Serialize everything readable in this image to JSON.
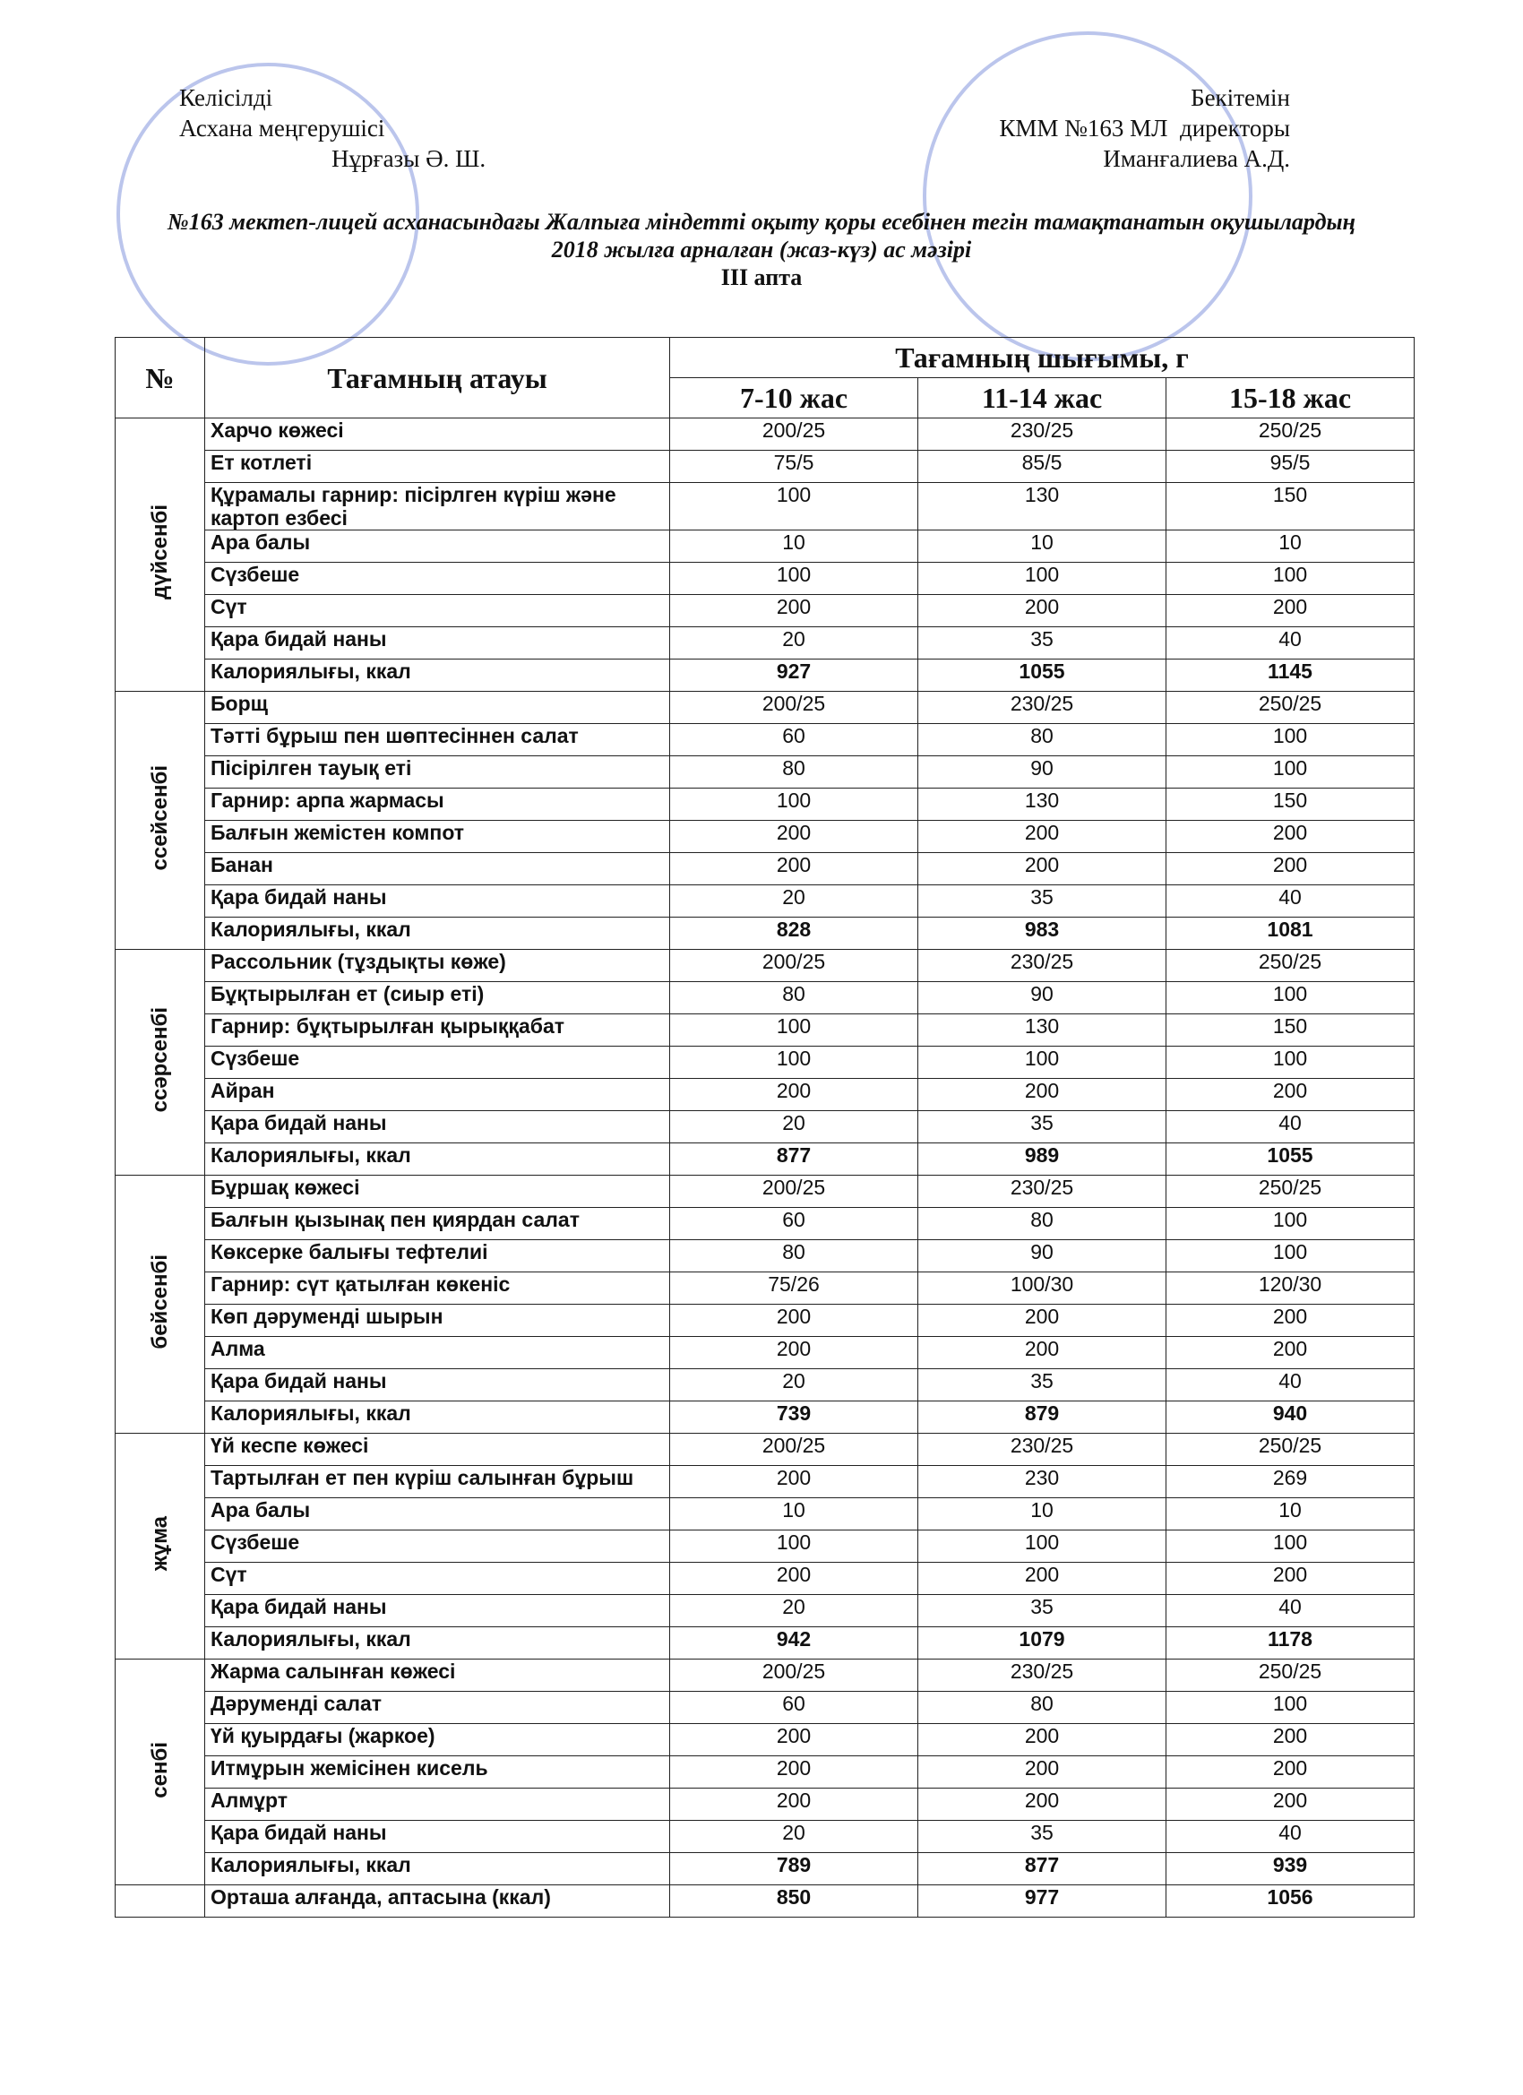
{
  "header": {
    "left": [
      "Келісілді",
      "Асхана меңгерушісі",
      "Нұрғазы Ә. Ш."
    ],
    "right": [
      "Бекітемін",
      "КММ №163 МЛ  директоры",
      "Иманғалиева А.Д."
    ],
    "title": [
      "№163 мектеп-лицей асханасындағы Жалпыға міндетті оқыту қоры есебінен тегін тамақтанатын оқушылардың",
      "2018 жылға арналған (жаз-күз) ас мәзірі",
      "III апта"
    ]
  },
  "table": {
    "columns": [
      "№",
      "Тағамның атауы",
      "Тағамның шығымы, г"
    ],
    "ages": [
      "7-10 жас",
      "11-14 жас",
      "15-18 жас"
    ],
    "days": [
      {
        "name": "дүйсенбі",
        "rows": [
          [
            "Харчо көжесі",
            "200/25",
            "230/25",
            "250/25"
          ],
          [
            "Ет котлеті",
            "75/5",
            "85/5",
            "95/5"
          ],
          [
            " Құрамалы гарнир: пісірлген күріш және картоп езбесі",
            100,
            130,
            150
          ],
          [
            "Ара балы",
            10,
            10,
            10
          ],
          [
            "Сүзбеше",
            100,
            100,
            100
          ],
          [
            "Сүт",
            200,
            200,
            200
          ],
          [
            "Қара бидай наны",
            20,
            35,
            40
          ],
          [
            "Калориялығы, ккал",
            927,
            1055,
            1145
          ]
        ]
      },
      {
        "name": "ссейсенбі",
        "rows": [
          [
            "Борщ",
            "200/25",
            "230/25",
            "250/25"
          ],
          [
            "Тәтті бұрыш пен шөптесіннен салат",
            60,
            80,
            100
          ],
          [
            "Пісірілген тауық еті",
            80,
            90,
            100
          ],
          [
            "Гарнир: арпа жармасы",
            100,
            130,
            150
          ],
          [
            "Балғын жемістен компот",
            200,
            200,
            200
          ],
          [
            "Банан",
            200,
            200,
            200
          ],
          [
            "Қара бидай наны",
            20,
            35,
            40
          ],
          [
            "Калориялығы, ккал",
            828,
            983,
            1081
          ]
        ]
      },
      {
        "name": "ссәрсенбі",
        "rows": [
          [
            "Рассольник  (тұздықты көже)",
            "200/25",
            "230/25",
            "250/25"
          ],
          [
            "Бұқтырылған ет (сиыр еті)",
            80,
            90,
            100
          ],
          [
            "Гарнир: бұқтырылған қырыққабат",
            100,
            130,
            150
          ],
          [
            "Сүзбеше",
            100,
            100,
            100
          ],
          [
            "Айран",
            200,
            200,
            200
          ],
          [
            "Қара бидай наны",
            20,
            35,
            40
          ],
          [
            "Калориялығы, ккал",
            877,
            989,
            1055
          ]
        ]
      },
      {
        "name": "бейсенбі",
        "rows": [
          [
            "Бұршақ  көжесі",
            "200/25",
            "230/25",
            "250/25"
          ],
          [
            "Балғын қызынақ пен қиярдан салат",
            60,
            80,
            100
          ],
          [
            "Көксерке балығы тефтелиі",
            80,
            90,
            100
          ],
          [
            "Гарнир: сүт қатылған көкеніс",
            "75/26",
            "100/30",
            "120/30"
          ],
          [
            "Көп дәруменді шырын",
            200,
            200,
            200
          ],
          [
            "Алма",
            200,
            200,
            200
          ],
          [
            "Қара бидай наны",
            20,
            35,
            40
          ],
          [
            "Калориялығы, ккал",
            739,
            879,
            940
          ]
        ]
      },
      {
        "name": "жұма",
        "rows": [
          [
            "Үй кеспе  көжесі",
            "200/25",
            "230/25",
            "250/25"
          ],
          [
            "Тартылған ет пен күріш салынған бұрыш",
            200,
            230,
            269
          ],
          [
            "Ара балы",
            10,
            10,
            10
          ],
          [
            "Сүзбеше",
            100,
            100,
            100
          ],
          [
            "Сүт",
            200,
            200,
            200
          ],
          [
            "Қара бидай наны",
            20,
            35,
            40
          ],
          [
            "Калориялығы, ккал",
            942,
            1079,
            1178
          ]
        ]
      },
      {
        "name": "сенбі",
        "rows": [
          [
            "Жарма салынған көжесі",
            "200/25",
            "230/25",
            "250/25"
          ],
          [
            "Дәруменді салат",
            60,
            80,
            100
          ],
          [
            "Үй қуырдағы (жаркое)",
            200,
            200,
            200
          ],
          [
            "Итмұрын жемісінен кисель",
            200,
            200,
            200
          ],
          [
            "Алмұрт",
            200,
            200,
            200
          ],
          [
            "Қара бидай наны",
            20,
            35,
            40
          ],
          [
            "Калориялығы, ккал",
            789,
            877,
            939
          ]
        ]
      }
    ],
    "average": [
      "Орташа алғанда, аптасына (ккал)",
      850,
      977,
      1056
    ]
  }
}
